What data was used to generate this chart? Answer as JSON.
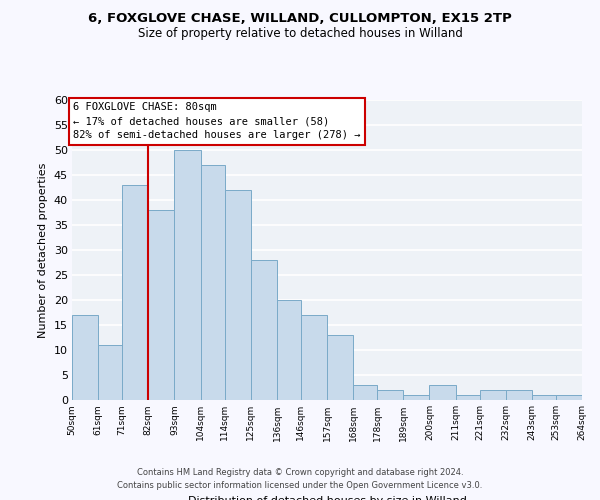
{
  "title": "6, FOXGLOVE CHASE, WILLAND, CULLOMPTON, EX15 2TP",
  "subtitle": "Size of property relative to detached houses in Willand",
  "xlabel": "Distribution of detached houses by size in Willand",
  "ylabel": "Number of detached properties",
  "bar_color": "#c8daeb",
  "bar_edge_color": "#7aaac8",
  "bin_edges": [
    50,
    61,
    71,
    82,
    93,
    104,
    114,
    125,
    136,
    146,
    157,
    168,
    178,
    189,
    200,
    211,
    221,
    232,
    243,
    253,
    264
  ],
  "bin_labels": [
    "50sqm",
    "61sqm",
    "71sqm",
    "82sqm",
    "93sqm",
    "104sqm",
    "114sqm",
    "125sqm",
    "136sqm",
    "146sqm",
    "157sqm",
    "168sqm",
    "178sqm",
    "189sqm",
    "200sqm",
    "211sqm",
    "221sqm",
    "232sqm",
    "243sqm",
    "253sqm",
    "264sqm"
  ],
  "counts": [
    17,
    11,
    43,
    38,
    50,
    47,
    42,
    28,
    20,
    17,
    13,
    3,
    2,
    1,
    3,
    1,
    2,
    2,
    1,
    1
  ],
  "property_line_x": 82,
  "annotation_line1": "6 FOXGLOVE CHASE: 80sqm",
  "annotation_line2": "← 17% of detached houses are smaller (58)",
  "annotation_line3": "82% of semi-detached houses are larger (278) →",
  "vline_color": "#cc0000",
  "annotation_box_edge": "#cc0000",
  "ylim": [
    0,
    60
  ],
  "yticks": [
    0,
    5,
    10,
    15,
    20,
    25,
    30,
    35,
    40,
    45,
    50,
    55,
    60
  ],
  "footer_line1": "Contains HM Land Registry data © Crown copyright and database right 2024.",
  "footer_line2": "Contains public sector information licensed under the Open Government Licence v3.0.",
  "bg_color": "#eef2f7",
  "fig_bg_color": "#f8f8ff"
}
